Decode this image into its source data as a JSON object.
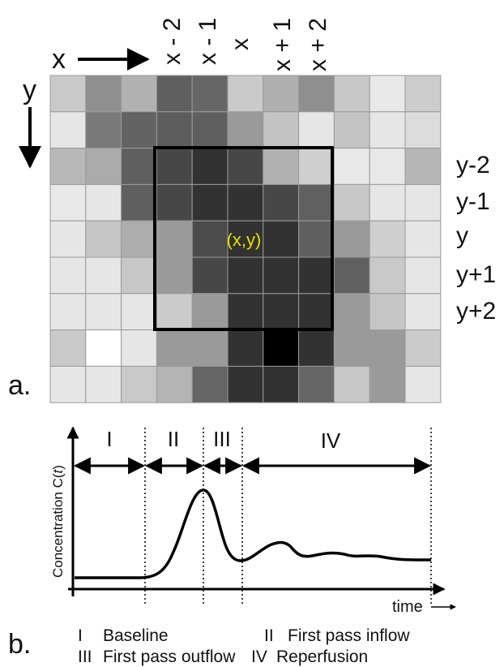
{
  "panel_a": {
    "label": "a.",
    "x_axis_label": "x",
    "y_axis_label": "y",
    "column_labels": [
      "x - 2",
      "x - 1",
      "x",
      "x + 1",
      "x + 2"
    ],
    "row_labels": [
      "y-2",
      "y-1",
      "y",
      "y+1",
      "y+2"
    ],
    "center_label": "(x,y)",
    "center_label_color": "#e8e000",
    "pixel_grid": [
      [
        "#c9c9c9",
        "#8f8f8f",
        "#b1b1b1",
        "#5f5f5f",
        "#666666",
        "#cacaca",
        "#b0b0b0",
        "#8f8f8f",
        "#c8c8c8",
        "#e8e8e8",
        "#cdcdcd"
      ],
      [
        "#e6e6e6",
        "#797979",
        "#636363",
        "#5d5d5d",
        "#5f5f5f",
        "#9a9a9a",
        "#c3c3c3",
        "#e6e6e6",
        "#c4c4c4",
        "#e6e6e6",
        "#dcdcdc"
      ],
      [
        "#b8b8b8",
        "#ababab",
        "#5f5f5f",
        "#474747",
        "#323232",
        "#474747",
        "#b1b1b1",
        "#cfcfcf",
        "#e8e8e8",
        "#e8e8e8",
        "#b7b7b7"
      ],
      [
        "#e8e8e8",
        "#e6e6e6",
        "#5f5f5f",
        "#474747",
        "#323232",
        "#323232",
        "#474747",
        "#606060",
        "#c8c8c8",
        "#e6e6e6",
        "#e6e6e6"
      ],
      [
        "#e6e6e6",
        "#c6c6c6",
        "#adadad",
        "#9a9a9a",
        "#4b4b4b",
        "#323232",
        "#323232",
        "#5f5f5f",
        "#9a9a9a",
        "#cfcfcf",
        "#e6e6e6"
      ],
      [
        "#e6e6e6",
        "#e6e6e6",
        "#c7c7c7",
        "#9a9a9a",
        "#474747",
        "#323232",
        "#323232",
        "#323232",
        "#606060",
        "#c9c9c9",
        "#e6e6e6"
      ],
      [
        "#e6e6e6",
        "#e6e6e6",
        "#e6e6e6",
        "#cbcbcb",
        "#9a9a9a",
        "#323232",
        "#323232",
        "#323232",
        "#9a9a9a",
        "#c6c6c6",
        "#e6e6e6"
      ],
      [
        "#c9c9c9",
        "#ffffff",
        "#e6e6e6",
        "#9a9a9a",
        "#9a9a9a",
        "#323232",
        "#000000",
        "#323232",
        "#9a9a9a",
        "#9a9a9a",
        "#cbcbcb"
      ],
      [
        "#e6e6e6",
        "#e6e6e6",
        "#c9c9c9",
        "#b4b4b4",
        "#656565",
        "#323232",
        "#323232",
        "#656565",
        "#c7c7c7",
        "#9a9a9a",
        "#e6e6e6"
      ]
    ]
  },
  "panel_b": {
    "label": "b.",
    "y_axis_label_prefix": "Concentration ",
    "y_axis_label_var": "C(",
    "y_axis_label_t": "t",
    "y_axis_label_suffix": ")",
    "x_axis_label": "time",
    "phases": [
      {
        "numeral": "I",
        "name": "Baseline"
      },
      {
        "numeral": "II",
        "name": "First pass inflow"
      },
      {
        "numeral": "III",
        "name": "First pass outflow"
      },
      {
        "numeral": "IV",
        "name": "Reperfusion"
      }
    ]
  }
}
